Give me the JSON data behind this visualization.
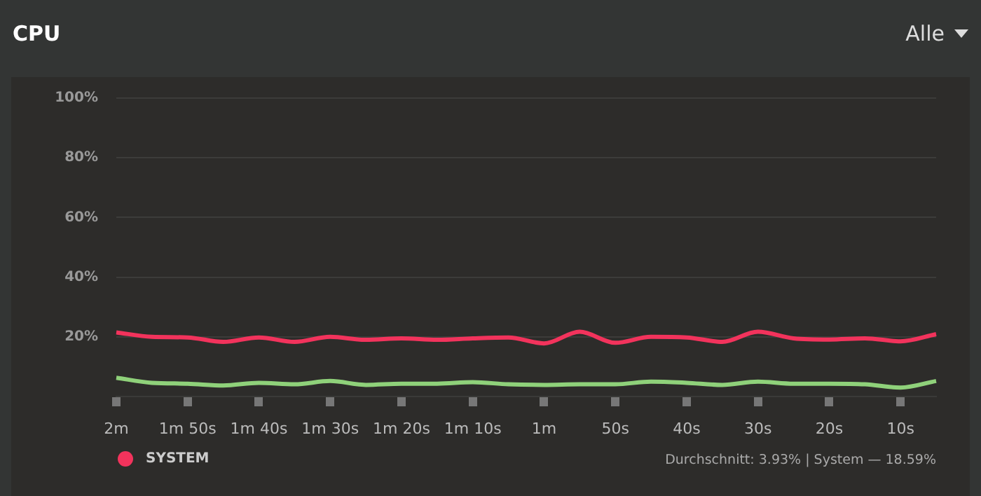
{
  "chart_data": {
    "type": "line",
    "title": "CPU",
    "annotations": [
      "Alle",
      "Durchschnitt: 3.93% | System — 18.59%"
    ],
    "categories": [
      "2m",
      null,
      "1m 50s",
      null,
      "1m 40s",
      null,
      "1m 30s",
      null,
      "1m 20s",
      null,
      "1m 10s",
      null,
      "1m",
      null,
      "50s",
      null,
      "40s",
      null,
      "30s",
      null,
      "20s",
      null,
      "10s",
      null
    ],
    "ylim": [
      0,
      100
    ],
    "yticks": [
      {
        "value": 20,
        "label": "20%"
      },
      {
        "value": 40,
        "label": "40%"
      },
      {
        "value": 60,
        "label": "60%"
      },
      {
        "value": 80,
        "label": "80%"
      },
      {
        "value": 100,
        "label": "100%"
      }
    ],
    "grid": "y",
    "legend": "bottom left",
    "marker": "none",
    "line_style": "solid",
    "series": [
      {
        "color": "#8fd17a",
        "values": [
          6.3,
          4.6,
          4.3,
          3.7,
          4.6,
          4.1,
          5.2,
          3.9,
          4.3,
          4.3,
          4.8,
          4.1,
          3.9,
          4.1,
          4.1,
          5,
          4.6,
          3.9,
          5,
          4.3,
          4.3,
          4.1,
          3,
          5.2
        ]
      },
      {
        "name": "SYSTEM",
        "color": "#f2335c",
        "values": [
          21.5,
          20,
          19.8,
          18.3,
          19.8,
          18.3,
          20,
          19,
          19.5,
          19,
          19.5,
          19.8,
          17.8,
          21.7,
          18,
          20,
          19.8,
          18.3,
          21.7,
          19.5,
          19.1,
          19.5,
          18.5,
          20.9
        ]
      }
    ]
  }
}
